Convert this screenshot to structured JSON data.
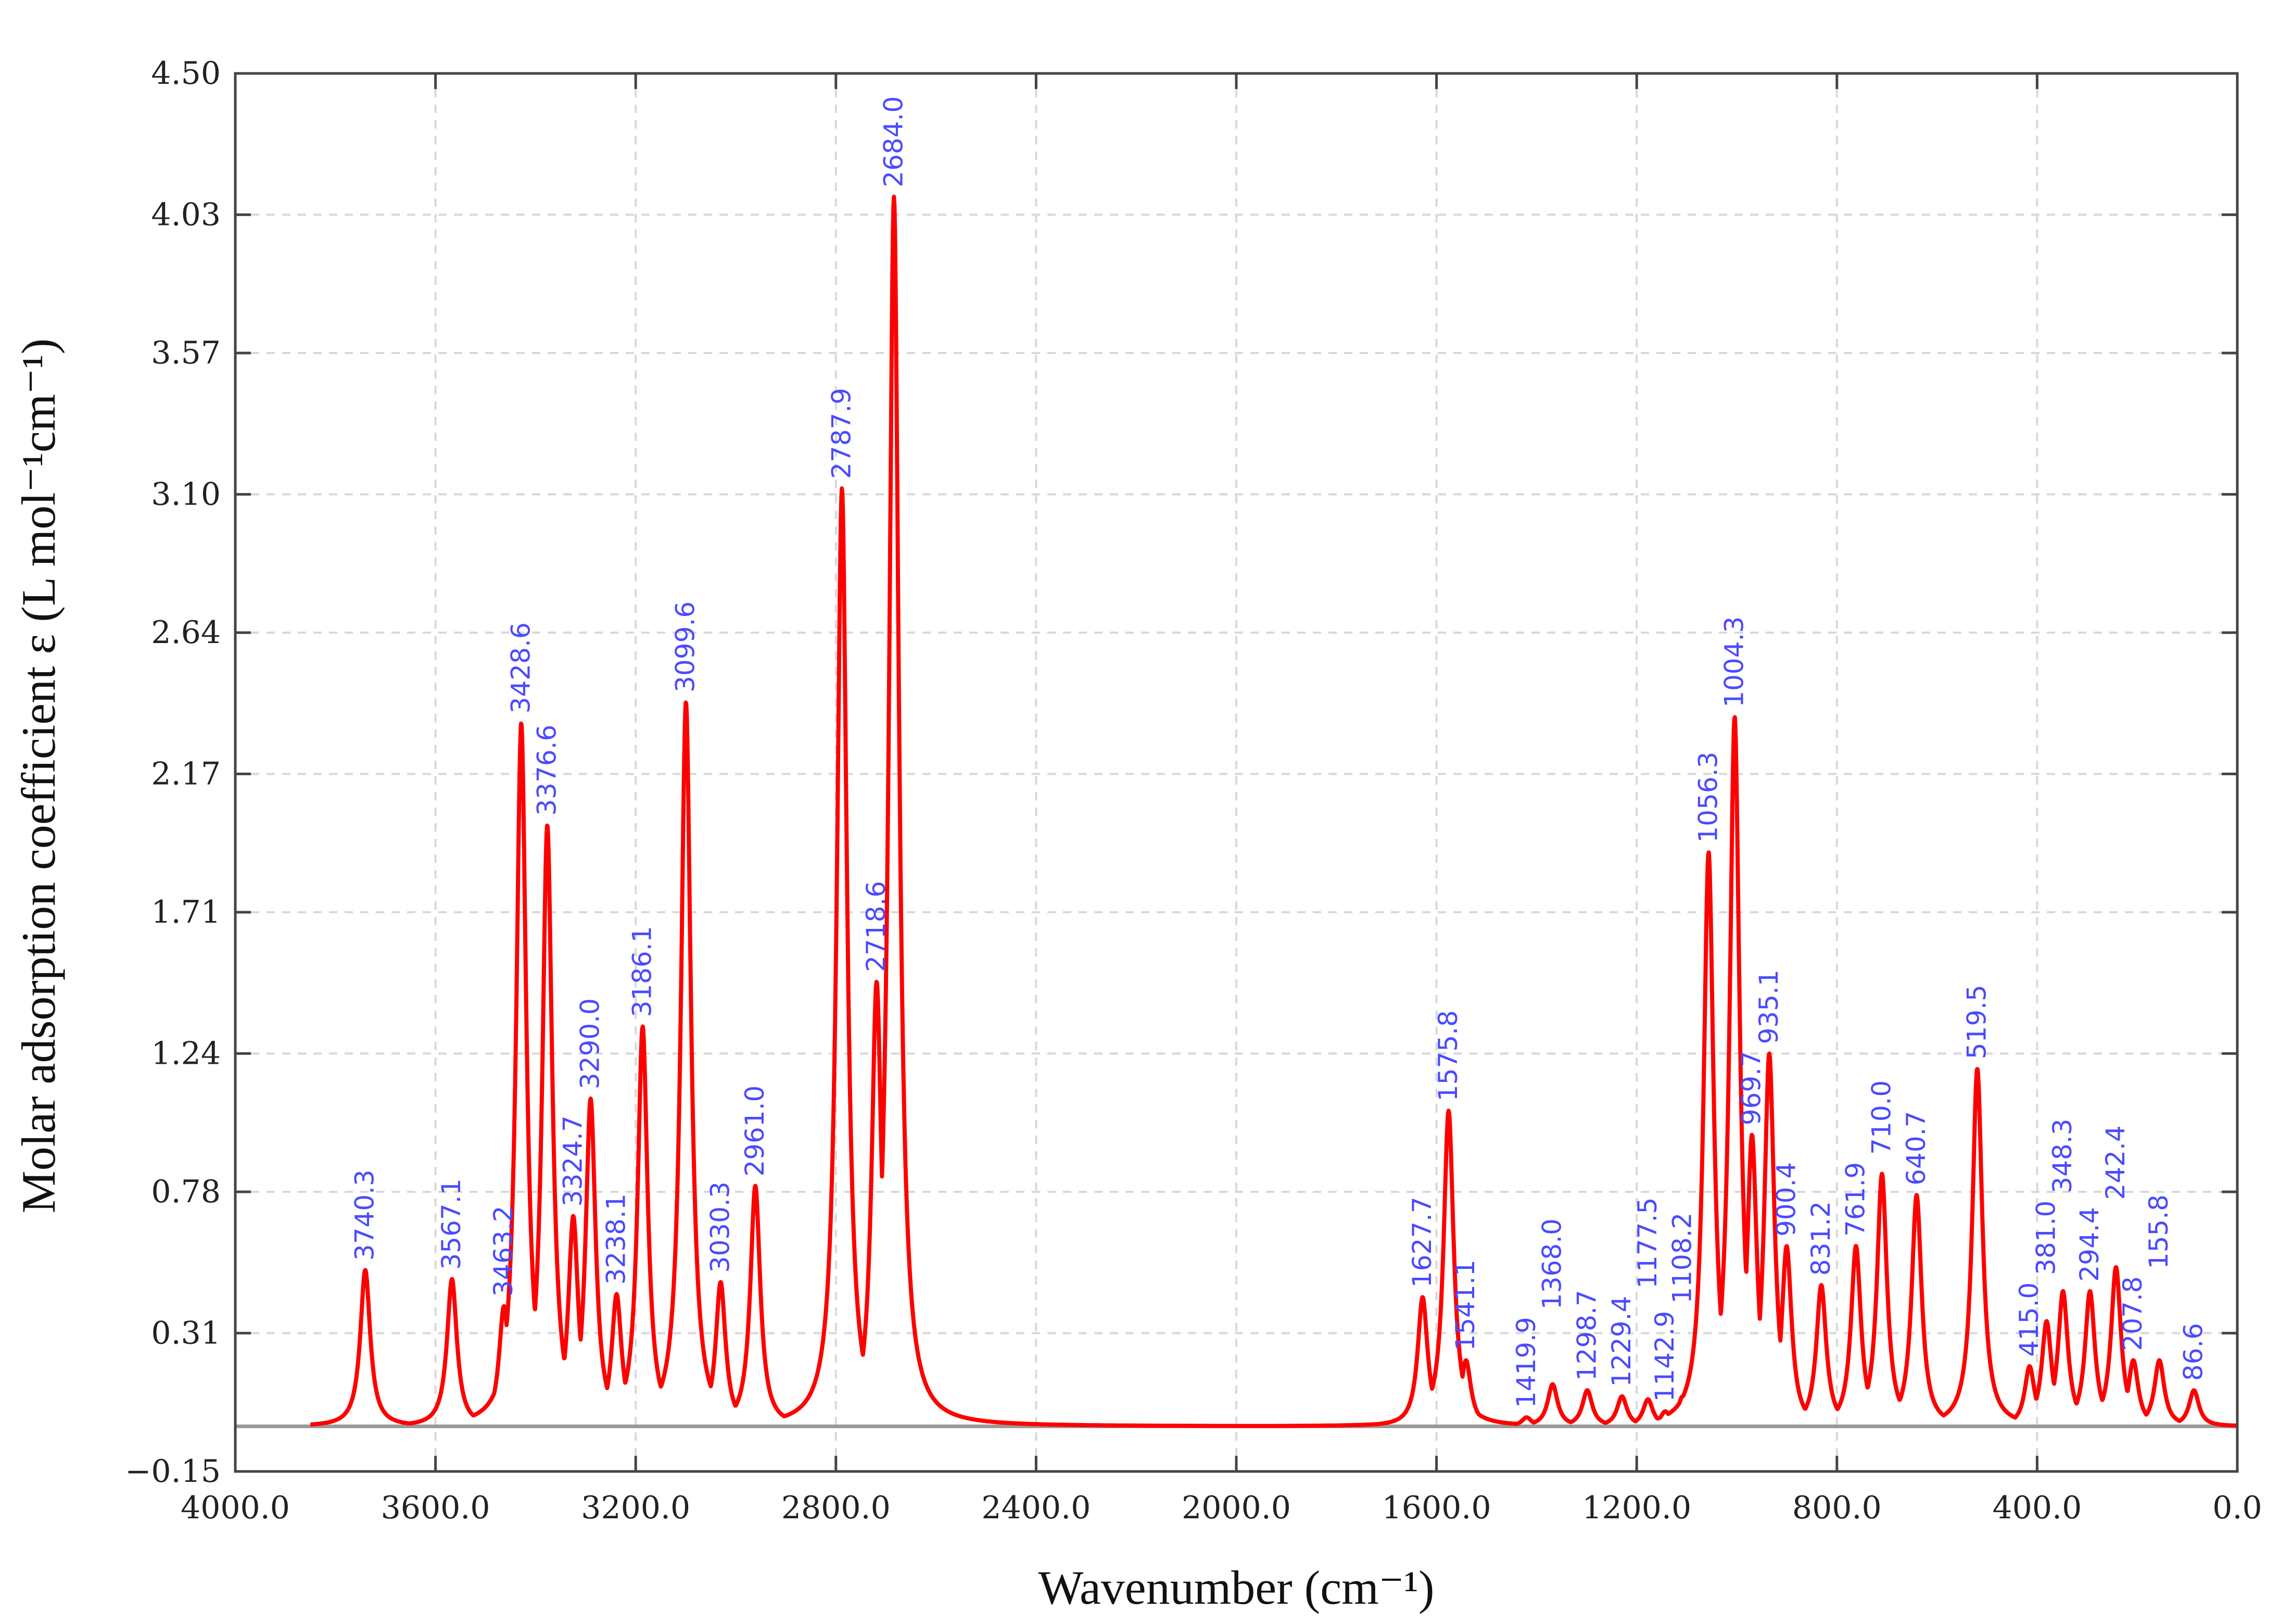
{
  "chart_data": {
    "type": "line",
    "title": "",
    "xlabel": "Wavenumber (cm⁻¹)",
    "ylabel": "Molar adsorption coefficient ε (L mol⁻¹cm⁻¹)",
    "xlim": [
      4000,
      0
    ],
    "ylim": [
      -0.15,
      4.5
    ],
    "x_reversed": true,
    "grid": true,
    "x_ticks": [
      "4000.0",
      "3600.0",
      "3200.0",
      "2800.0",
      "2400.0",
      "2000.0",
      "1600.0",
      "1200.0",
      "800.0",
      "400.0",
      "0.0"
    ],
    "x_tick_values": [
      4000,
      3600,
      3200,
      2800,
      2400,
      2000,
      1600,
      1200,
      800,
      400,
      0
    ],
    "y_ticks": [
      "4.50",
      "4.03",
      "3.57",
      "3.10",
      "2.64",
      "2.17",
      "1.71",
      "1.24",
      "0.78",
      "0.31",
      "−0.15"
    ],
    "y_tick_values": [
      4.5,
      4.03,
      3.57,
      3.1,
      2.64,
      2.17,
      1.71,
      1.24,
      0.78,
      0.31,
      -0.15
    ],
    "line_color": "#ff0000",
    "label_color": "#4a4aff",
    "peaks": [
      {
        "label": "3740.3",
        "x": 3740.3,
        "y": 0.52
      },
      {
        "label": "3567.1",
        "x": 3567.1,
        "y": 0.49
      },
      {
        "label": "3463.2",
        "x": 3463.2,
        "y": 0.4
      },
      {
        "label": "3428.6",
        "x": 3428.6,
        "y": 2.34
      },
      {
        "label": "3376.6",
        "x": 3376.6,
        "y": 2.0
      },
      {
        "label": "3324.7",
        "x": 3324.7,
        "y": 0.7
      },
      {
        "label": "3290.0",
        "x": 3290.0,
        "y": 1.09
      },
      {
        "label": "3238.1",
        "x": 3238.1,
        "y": 0.44
      },
      {
        "label": "3186.1",
        "x": 3186.1,
        "y": 1.33
      },
      {
        "label": "3099.6",
        "x": 3099.6,
        "y": 2.41
      },
      {
        "label": "3030.3",
        "x": 3030.3,
        "y": 0.48
      },
      {
        "label": "2961.0",
        "x": 2961.0,
        "y": 0.8
      },
      {
        "label": "2787.9",
        "x": 2787.9,
        "y": 3.12
      },
      {
        "label": "2718.6",
        "x": 2718.6,
        "y": 1.48
      },
      {
        "label": "2684.0",
        "x": 2684.0,
        "y": 4.09
      },
      {
        "label": "1627.7",
        "x": 1627.7,
        "y": 0.43
      },
      {
        "label": "1575.8",
        "x": 1575.8,
        "y": 1.05
      },
      {
        "label": "1541.1",
        "x": 1541.1,
        "y": 0.22
      },
      {
        "label": "1419.9",
        "x": 1419.9,
        "y": 0.03
      },
      {
        "label": "1368.0",
        "x": 1368.0,
        "y": 0.14
      },
      {
        "label": "1298.7",
        "x": 1298.7,
        "y": 0.12
      },
      {
        "label": "1229.4",
        "x": 1229.4,
        "y": 0.1
      },
      {
        "label": "1177.5",
        "x": 1177.5,
        "y": 0.09
      },
      {
        "label": "1142.9",
        "x": 1142.9,
        "y": 0.05
      },
      {
        "label": "1108.2",
        "x": 1108.2,
        "y": 0.1
      },
      {
        "label": "1056.3",
        "x": 1056.3,
        "y": 1.91
      },
      {
        "label": "1004.3",
        "x": 1004.3,
        "y": 2.36
      },
      {
        "label": "969.7",
        "x": 969.7,
        "y": 0.97
      },
      {
        "label": "935.1",
        "x": 935.1,
        "y": 1.24
      },
      {
        "label": "900.4",
        "x": 900.4,
        "y": 0.6
      },
      {
        "label": "831.2",
        "x": 831.2,
        "y": 0.47
      },
      {
        "label": "761.9",
        "x": 761.9,
        "y": 0.6
      },
      {
        "label": "710.0",
        "x": 710.0,
        "y": 0.84
      },
      {
        "label": "640.7",
        "x": 640.7,
        "y": 0.77
      },
      {
        "label": "519.5",
        "x": 519.5,
        "y": 1.19
      },
      {
        "label": "415.0",
        "x": 415.0,
        "y": 0.2
      },
      {
        "label": "381.0",
        "x": 381.0,
        "y": 0.35
      },
      {
        "label": "348.3",
        "x": 348.3,
        "y": 0.45
      },
      {
        "label": "294.4",
        "x": 294.4,
        "y": 0.45
      },
      {
        "label": "242.4",
        "x": 242.4,
        "y": 0.53
      },
      {
        "label": "207.8",
        "x": 207.8,
        "y": 0.22
      },
      {
        "label": "155.8",
        "x": 155.8,
        "y": 0.22
      },
      {
        "label": "86.6",
        "x": 86.6,
        "y": 0.12
      }
    ]
  }
}
